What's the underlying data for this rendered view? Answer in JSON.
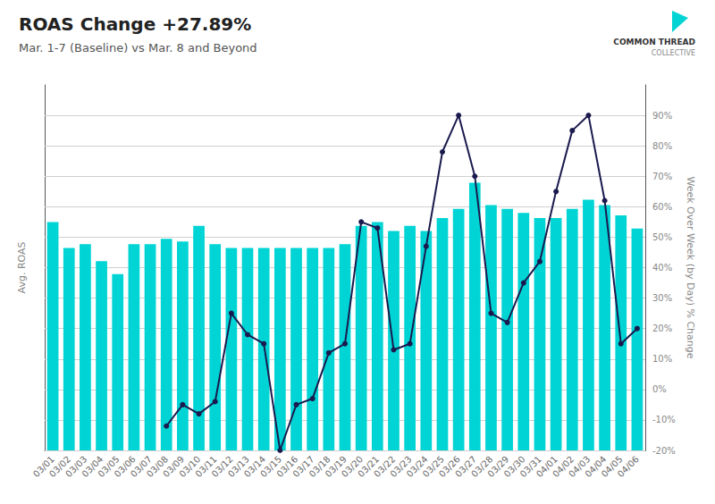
{
  "chart_data": {
    "type": "bar",
    "title": "ROAS Change +27.89%",
    "subtitle": "Mar. 1-7 (Baseline) vs Mar. 8 and Beyond",
    "ylabel": "Avg. ROAS",
    "y2label": "Week Over Week (by Day) % Change",
    "categories": [
      "03/01",
      "03/02",
      "03/03",
      "03/04",
      "03/05",
      "03/06",
      "03/07",
      "03/08",
      "03/09",
      "03/10",
      "03/11",
      "03/12",
      "03/13",
      "03/14",
      "03/15",
      "03/16",
      "03/17",
      "03/18",
      "03/19",
      "03/20",
      "03/21",
      "03/22",
      "03/23",
      "03/24",
      "03/25",
      "03/26",
      "03/27",
      "03/28",
      "03/29",
      "03/30",
      "03/31",
      "04/01",
      "04/02",
      "04/03",
      "04/04",
      "04/05",
      "04/06"
    ],
    "series": [
      {
        "type": "bar",
        "color": "#00D4D4",
        "axis": "y",
        "values": [
          1.75,
          1.55,
          1.58,
          1.45,
          1.35,
          1.58,
          1.58,
          1.62,
          1.6,
          1.72,
          1.58,
          1.55,
          1.55,
          1.55,
          1.55,
          1.55,
          1.55,
          1.55,
          1.58,
          1.72,
          1.75,
          1.68,
          1.72,
          1.68,
          1.78,
          1.85,
          2.05,
          1.88,
          1.85,
          1.82,
          1.78,
          1.78,
          1.85,
          1.92,
          1.88,
          1.8,
          1.7
        ]
      },
      {
        "type": "line",
        "color": "#1a1a4e",
        "axis": "y2",
        "marker": "o",
        "values": [
          null,
          null,
          null,
          null,
          null,
          null,
          null,
          -12,
          -5,
          -8,
          -4,
          25,
          18,
          15,
          -20,
          -5,
          -3,
          12,
          15,
          55,
          53,
          13,
          15,
          47,
          78,
          90,
          70,
          25,
          22,
          35,
          42,
          65,
          85,
          90,
          62,
          15,
          20
        ]
      }
    ],
    "ylim": [
      0,
      2.8
    ],
    "y2lim": [
      -20,
      100
    ],
    "y2ticks": [
      {
        "value": -20,
        "label": "-20%"
      },
      {
        "value": -10,
        "label": "-10%"
      },
      {
        "value": 0,
        "label": "0%"
      },
      {
        "value": 10,
        "label": "10%"
      },
      {
        "value": 20,
        "label": "20%"
      },
      {
        "value": 30,
        "label": "30%"
      },
      {
        "value": 40,
        "label": "40%"
      },
      {
        "value": 50,
        "label": "50%"
      },
      {
        "value": 60,
        "label": "60%"
      },
      {
        "value": 70,
        "label": "70%"
      },
      {
        "value": 80,
        "label": "80%"
      },
      {
        "value": 90,
        "label": "90%"
      }
    ],
    "grid": true,
    "annotations": [
      "COMMON THREAD",
      "COLLECTIVE"
    ]
  }
}
